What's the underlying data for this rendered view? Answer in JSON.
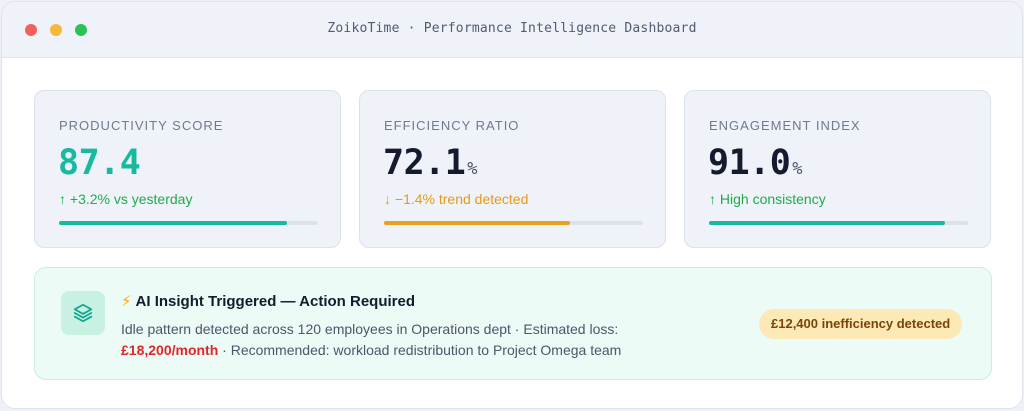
{
  "window": {
    "title": "ZoikoTime · Performance Intelligence Dashboard"
  },
  "metrics": [
    {
      "label": "PRODUCTIVITY SCORE",
      "value": "87.4",
      "unit": "",
      "trend": "↑ +3.2% vs yesterday",
      "progress": 0.88,
      "accent": "#17b9a1"
    },
    {
      "label": "EFFICIENCY RATIO",
      "value": "72.1",
      "unit": "%",
      "trend": "↓ −1.4% trend detected",
      "progress": 0.72,
      "accent": "#e8a11a"
    },
    {
      "label": "ENGAGEMENT INDEX",
      "value": "91.0",
      "unit": "%",
      "trend": "↑ High consistency",
      "progress": 0.91,
      "accent": "#1ab8a0"
    }
  ],
  "insight": {
    "icon": "layers-icon",
    "bolt": "⚡",
    "title": "AI Insight Triggered — Action Required",
    "line1": "Idle pattern detected across 120 employees in Operations dept · Estimated loss:",
    "loss": "£18,200/month",
    "line2": " · Recommended: workload redistribution to Project Omega team",
    "badge": "£12,400 inefficiency detected"
  }
}
